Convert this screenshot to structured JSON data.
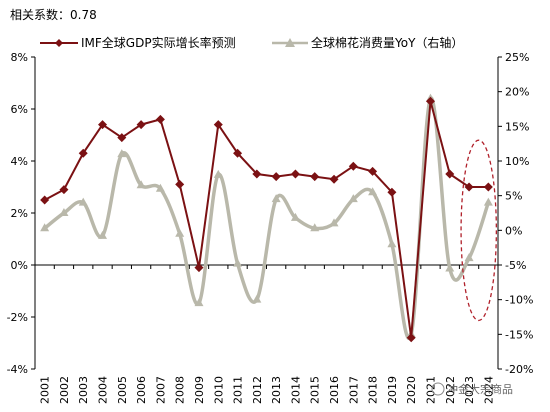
{
  "chart_data": {
    "type": "line",
    "title": "相关系数：0.78",
    "categories": [
      "2001",
      "2002",
      "2003",
      "2004",
      "2005",
      "2006",
      "2007",
      "2008",
      "2009",
      "2010",
      "2011",
      "2012",
      "2013",
      "2014",
      "2015",
      "2016",
      "2017",
      "2018",
      "2019",
      "2020",
      "2021",
      "2022",
      "2023",
      "2024"
    ],
    "series": [
      {
        "name": "IMF全球GDP实际增长率预测",
        "axis": "left",
        "color": "#7b1113",
        "marker": "diamond",
        "values": [
          2.5,
          2.9,
          4.3,
          5.4,
          4.9,
          5.4,
          5.6,
          3.1,
          -0.1,
          5.4,
          4.3,
          3.5,
          3.4,
          3.5,
          3.4,
          3.3,
          3.8,
          3.6,
          2.8,
          -2.8,
          6.3,
          3.5,
          3.0,
          3.0
        ]
      },
      {
        "name": "全球棉花消费量YoY（右轴）",
        "axis": "right",
        "color": "#b9b8aa",
        "marker": "triangle",
        "values": [
          0.3,
          2.5,
          4.0,
          -0.8,
          11.0,
          6.5,
          6.0,
          -0.5,
          -10.5,
          8.0,
          -4.8,
          -10.0,
          4.5,
          1.8,
          0.3,
          1.0,
          4.5,
          5.5,
          -2.0,
          -15.0,
          19.0,
          -5.5,
          -4.0,
          4.0
        ]
      }
    ],
    "y_left": {
      "min": -4,
      "max": 8,
      "step": 2,
      "unit": "%",
      "ticks": [
        "-4%",
        "-2%",
        "0%",
        "2%",
        "4%",
        "6%",
        "8%"
      ]
    },
    "y_right": {
      "min": -20,
      "max": 25,
      "step": 5,
      "unit": "%",
      "ticks": [
        "-20%",
        "-15%",
        "-10%",
        "-5%",
        "0%",
        "5%",
        "10%",
        "15%",
        "20%",
        "25%"
      ]
    },
    "highlight": {
      "type": "dashed-ellipse",
      "around": [
        "2023",
        "2024"
      ],
      "color": "#b0202a"
    },
    "legend_position": "top",
    "grid": false
  },
  "watermark": "冲金大宗商品",
  "colors": {
    "gdp": "#7b1113",
    "cotton": "#b9b8aa",
    "highlight": "#b0202a"
  }
}
